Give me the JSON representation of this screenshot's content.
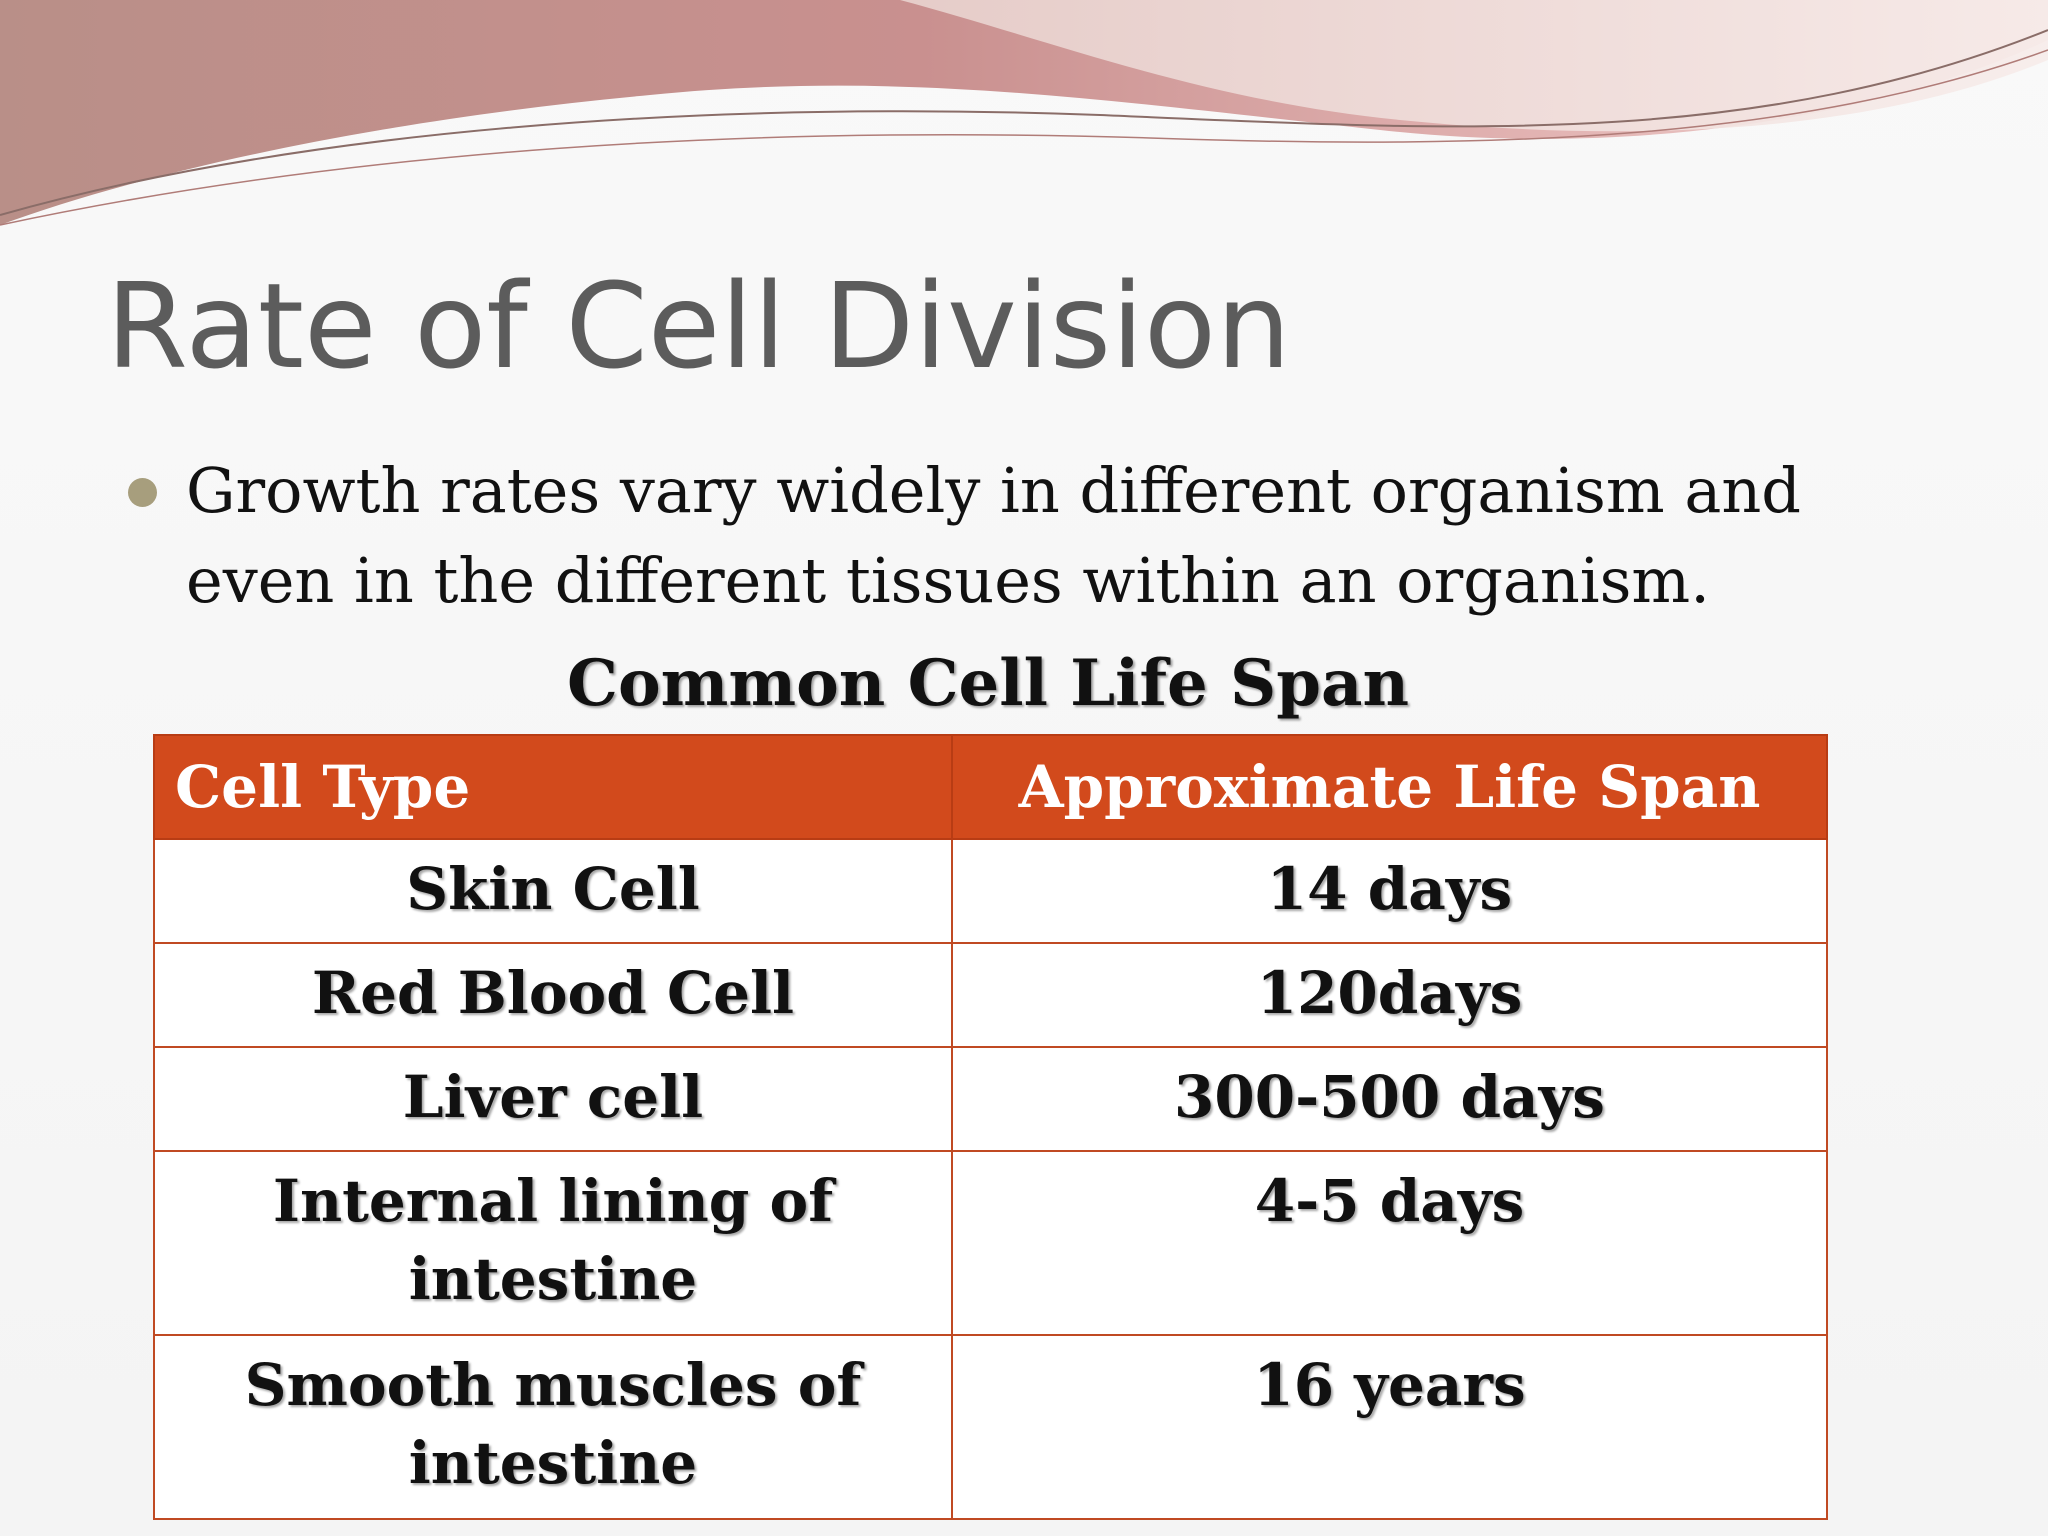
{
  "slide": {
    "title": "Rate of Cell Division",
    "bullet": "Growth rates vary widely in different organism and even in the different tissues within an organism.",
    "table_caption": "Common Cell Life Span",
    "table": {
      "headers": [
        "Cell Type",
        "Approximate Life Span"
      ],
      "rows": [
        {
          "cell_type": "Skin Cell",
          "life_span": "14 days"
        },
        {
          "cell_type": "Red Blood Cell",
          "life_span": "120days"
        },
        {
          "cell_type": "Liver cell",
          "life_span": "300-500 days"
        },
        {
          "cell_type": "Internal lining of intestine",
          "life_span": "4-5 days"
        },
        {
          "cell_type": "Smooth muscles of intestine",
          "life_span": "16 years"
        }
      ]
    }
  },
  "colors": {
    "header_fill": "#d24a1c",
    "title_text": "#5c5c5c",
    "bullet_dot": "#a79e7d",
    "wave_pink": "#c98a8c"
  },
  "icons": {
    "bullet": "round-bullet-dot"
  }
}
